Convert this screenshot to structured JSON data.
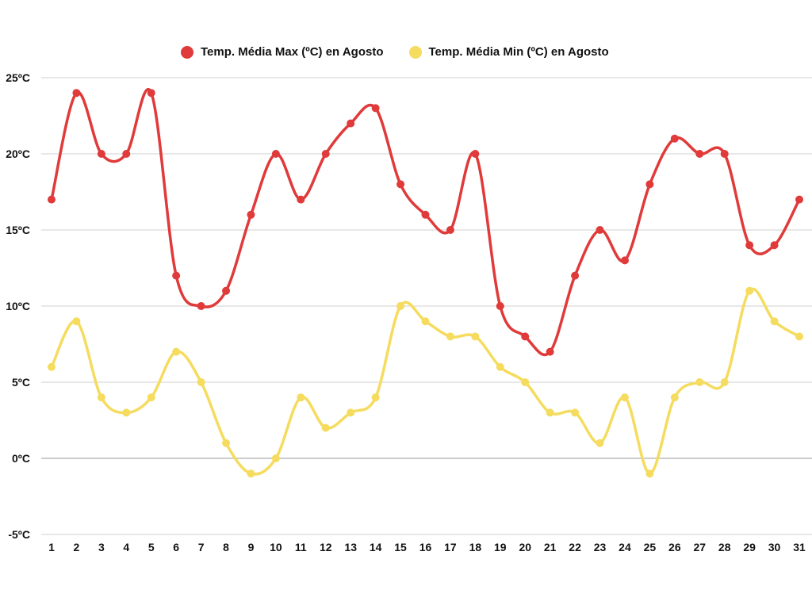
{
  "chart_data": {
    "type": "line",
    "title": "",
    "xlabel": "",
    "ylabel": "",
    "categories": [
      "1",
      "2",
      "3",
      "4",
      "5",
      "6",
      "7",
      "8",
      "9",
      "10",
      "11",
      "12",
      "13",
      "14",
      "15",
      "16",
      "17",
      "18",
      "19",
      "20",
      "21",
      "22",
      "23",
      "24",
      "25",
      "26",
      "27",
      "28",
      "29",
      "30",
      "31"
    ],
    "ylim": [
      -5,
      25
    ],
    "yticks": [
      25,
      20,
      15,
      10,
      5,
      0,
      -5
    ],
    "ytick_labels": [
      "25ºC",
      "20ºC",
      "15ºC",
      "10ºC",
      "5ºC",
      "0ºC",
      "-5ºC"
    ],
    "grid": true,
    "legend_position": "top-center",
    "series": [
      {
        "name": "Temp. Média Max (ºC) en Agosto",
        "color": "#e03a3a",
        "values": [
          17,
          24,
          20,
          20,
          24,
          12,
          10,
          11,
          16,
          20,
          17,
          20,
          22,
          23,
          18,
          16,
          15,
          20,
          10,
          8,
          7,
          12,
          15,
          13,
          18,
          21,
          20,
          20,
          14,
          14,
          17
        ]
      },
      {
        "name": "Temp. Média Min (ºC) en Agosto",
        "color": "#f5dc5f",
        "values": [
          6,
          9,
          4,
          3,
          4,
          7,
          5,
          1,
          -1,
          0,
          4,
          2,
          3,
          4,
          10,
          9,
          8,
          8,
          6,
          5,
          3,
          3,
          1,
          4,
          -1,
          4,
          5,
          5,
          11,
          9,
          8
        ]
      }
    ]
  }
}
